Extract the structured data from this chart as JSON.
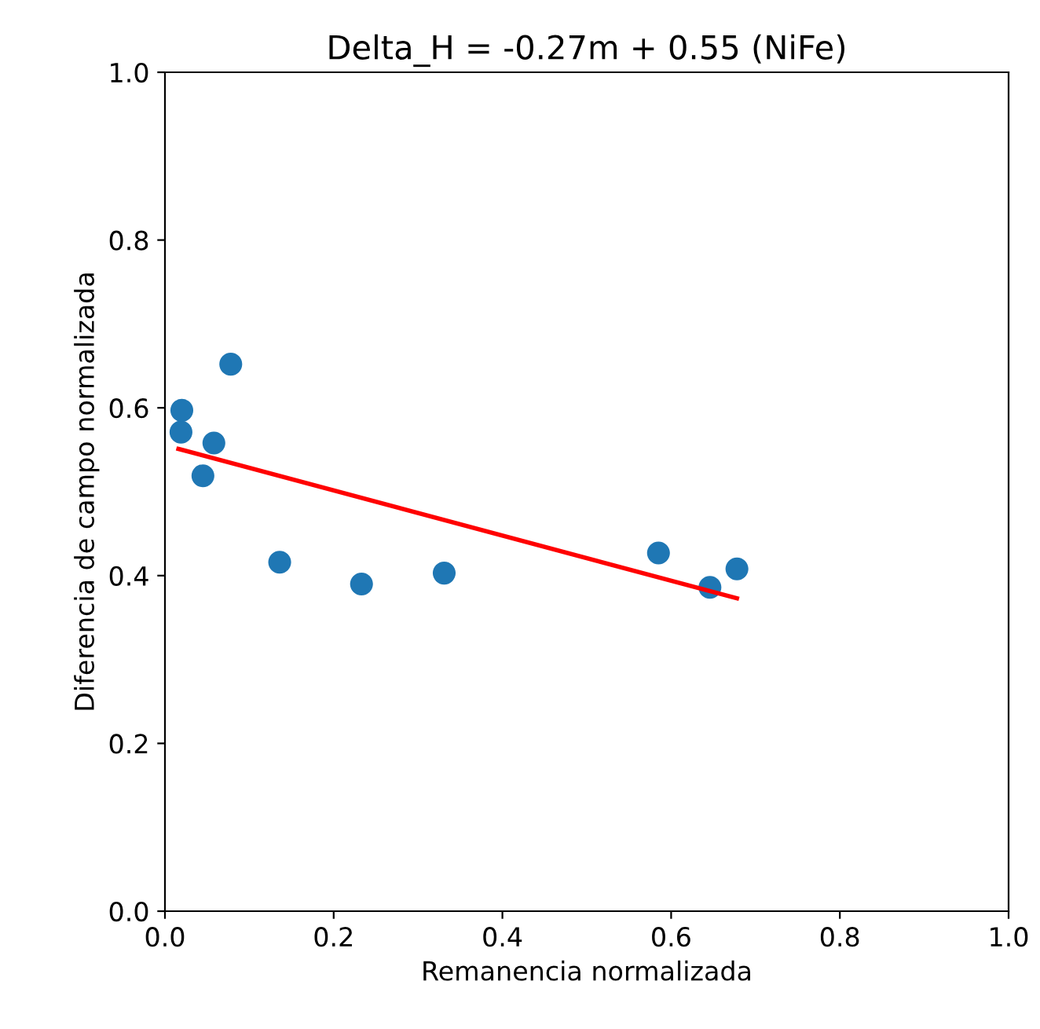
{
  "chart_data": {
    "type": "scatter",
    "title": "Delta_H = -0.27m + 0.55 (NiFe)",
    "xlabel": "Remanencia normalizada",
    "ylabel": "Diferencia de campo normalizada",
    "xlim": [
      0,
      1
    ],
    "ylim": [
      0,
      1
    ],
    "xticks": [
      {
        "value": 0,
        "label": "0.0"
      },
      0.2,
      0.4,
      0.6,
      0.8,
      {
        "value": 1,
        "label": "1.0"
      }
    ],
    "yticks": [
      {
        "value": 0,
        "label": "0.0"
      },
      0.2,
      0.4,
      0.6,
      0.8,
      {
        "value": 1,
        "label": "1.0"
      }
    ],
    "grid": false,
    "series": [
      {
        "color": "#1f77b4",
        "marker": "circle",
        "x": [
          0.019,
          0.02,
          0.078,
          0.058,
          0.045,
          0.136,
          0.233,
          0.331,
          0.585,
          0.646,
          0.678
        ],
        "values": [
          0.571,
          0.597,
          0.652,
          0.558,
          0.519,
          0.416,
          0.39,
          0.403,
          0.427,
          0.386,
          0.408
        ]
      },
      {
        "type": "line",
        "color": "#ff0000",
        "marker": "none",
        "x": [
          0.016,
          0.678
        ],
        "values": [
          0.551,
          0.373
        ]
      }
    ]
  }
}
